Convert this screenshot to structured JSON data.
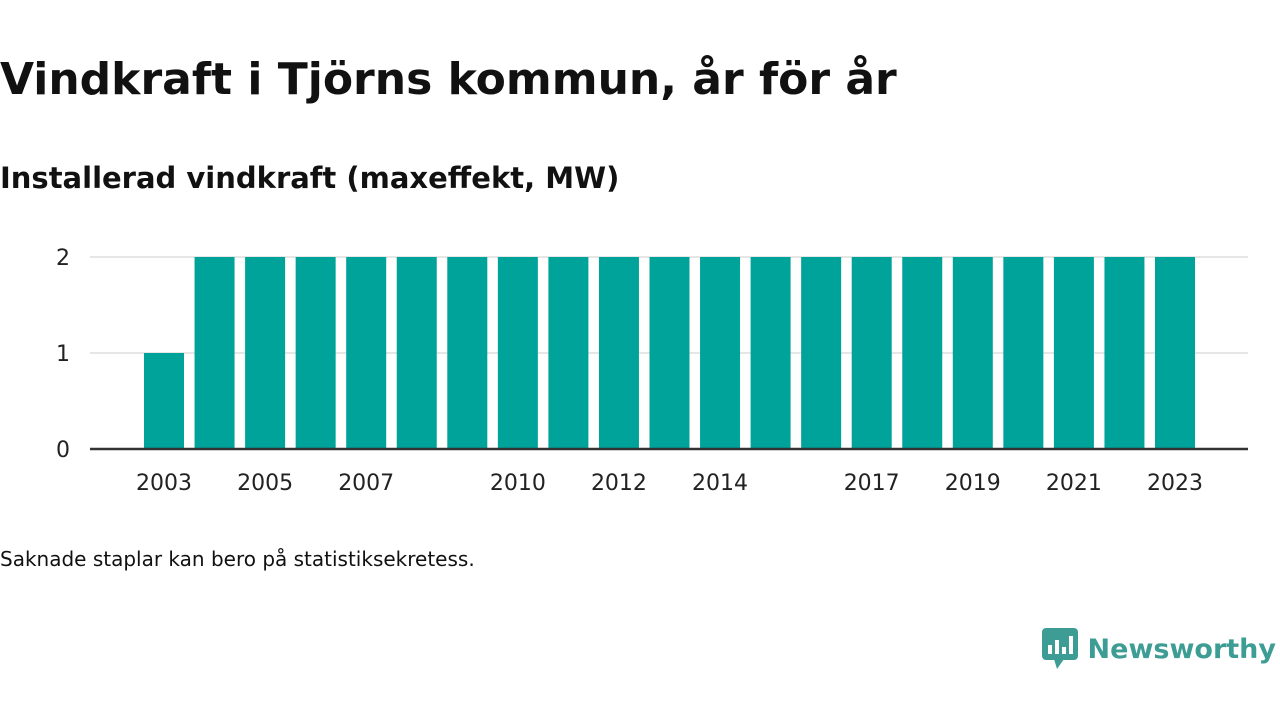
{
  "title": "Vindkraft i Tjörns kommun, år för år",
  "subtitle": "Installerad vindkraft (maxeffekt, MW)",
  "note": "Saknade staplar kan bero på statistiksekretess.",
  "brand": {
    "name": "Newsworthy",
    "icon": "newsworthy-logo-icon",
    "color": "#3d9d95"
  },
  "colors": {
    "bar": "#00a39a",
    "grid": "#dddddd",
    "axis": "#333333"
  },
  "chart_data": {
    "type": "bar",
    "categories": [
      "2003",
      "2004",
      "2005",
      "2006",
      "2007",
      "2008",
      "2009",
      "2010",
      "2011",
      "2012",
      "2013",
      "2014",
      "2015",
      "2016",
      "2017",
      "2018",
      "2019",
      "2020",
      "2021",
      "2022",
      "2023"
    ],
    "values": [
      1,
      2,
      2,
      2,
      2,
      2,
      2,
      2,
      2,
      2,
      2,
      2,
      2,
      2,
      2,
      2,
      2,
      2,
      2,
      2,
      2
    ],
    "x_tick_labels": [
      "2003",
      "2005",
      "2007",
      "2010",
      "2012",
      "2014",
      "2017",
      "2019",
      "2021",
      "2023"
    ],
    "y_ticks": [
      0,
      1,
      2
    ],
    "ylim": [
      0,
      2
    ],
    "title": "Vindkraft i Tjörns kommun, år för år",
    "subtitle": "Installerad vindkraft (maxeffekt, MW)",
    "xlabel": "",
    "ylabel": "",
    "grid": true,
    "legend": "none"
  }
}
